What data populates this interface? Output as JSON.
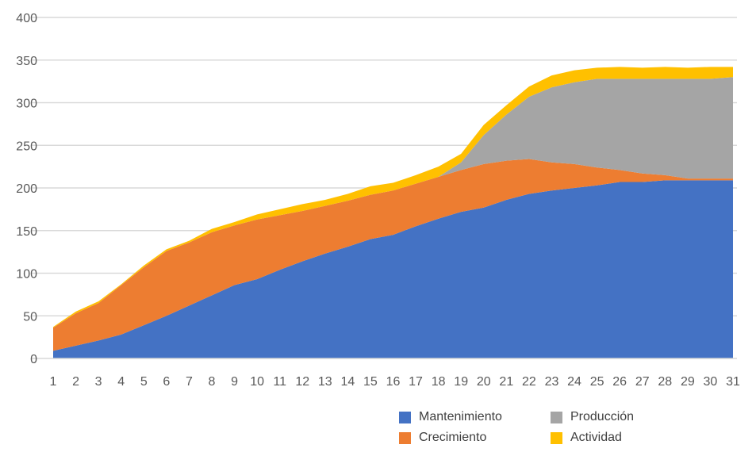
{
  "chart_data": {
    "type": "area",
    "stacked": true,
    "title": "",
    "xlabel": "",
    "ylabel": "",
    "ylim": [
      0,
      400
    ],
    "yticks": [
      0,
      50,
      100,
      150,
      200,
      250,
      300,
      350,
      400
    ],
    "grid": true,
    "legend_position": "bottom-right",
    "x": [
      1,
      2,
      3,
      4,
      5,
      6,
      7,
      8,
      9,
      10,
      11,
      12,
      13,
      14,
      15,
      16,
      17,
      18,
      19,
      20,
      21,
      22,
      23,
      24,
      25,
      26,
      27,
      28,
      29,
      30,
      31
    ],
    "series": [
      {
        "name": "Mantenimiento",
        "color": "#4472C4",
        "values": [
          9,
          15,
          21,
          28,
          39,
          50,
          62,
          74,
          86,
          93,
          104,
          114,
          123,
          131,
          140,
          145,
          155,
          164,
          172,
          177,
          186,
          193,
          197,
          200,
          203,
          207,
          207,
          209,
          209,
          209,
          209
        ]
      },
      {
        "name": "Crecimiento",
        "color": "#ED7D31",
        "values": [
          27,
          38,
          44,
          58,
          68,
          76,
          74,
          74,
          70,
          70,
          64,
          59,
          56,
          54,
          52,
          52,
          50,
          49,
          49,
          51,
          46,
          41,
          33,
          28,
          21,
          14,
          10,
          6,
          2,
          2,
          2
        ]
      },
      {
        "name": "Producción",
        "color": "#A5A5A5",
        "values": [
          0,
          0,
          0,
          0,
          0,
          0,
          0,
          0,
          0,
          0,
          0,
          0,
          0,
          0,
          0,
          0,
          0,
          0,
          9,
          34,
          54,
          73,
          88,
          96,
          104,
          107,
          111,
          113,
          117,
          117,
          119
        ]
      },
      {
        "name": "Actividad",
        "color": "#FFC000",
        "values": [
          1,
          2,
          2,
          1,
          2,
          2,
          2,
          4,
          4,
          6,
          7,
          8,
          7,
          8,
          10,
          9,
          10,
          12,
          10,
          12,
          11,
          12,
          14,
          14,
          13,
          14,
          13,
          14,
          13,
          14,
          12
        ]
      }
    ]
  }
}
